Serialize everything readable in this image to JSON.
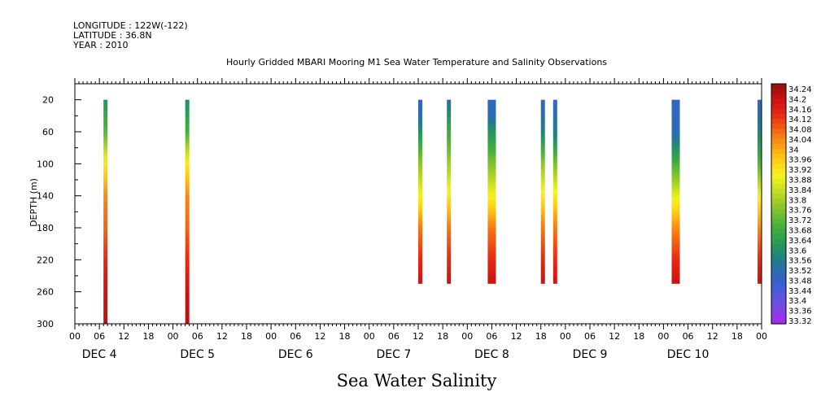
{
  "header": {
    "longitude": "LONGITUDE : 122W(-122)",
    "latitude": "LATITUDE : 36.8N",
    "year": "YEAR : 2010"
  },
  "chart_data": {
    "type": "heatmap",
    "title": "Hourly Gridded MBARI Mooring M1 Sea Water Temperature and Salinity Observations",
    "xlabel": "Sea Water Salinity",
    "ylabel": "DEPTH (m)",
    "y_axis": {
      "range": [
        300,
        0
      ],
      "ticks": [
        20,
        60,
        100,
        140,
        180,
        220,
        260,
        300
      ],
      "inverted": true
    },
    "x_axis": {
      "hour_ticks": [
        "00",
        "06",
        "12",
        "18",
        "00",
        "06",
        "12",
        "18",
        "00",
        "06",
        "12",
        "18",
        "00",
        "06",
        "12",
        "18",
        "00",
        "06",
        "12",
        "18",
        "00",
        "06",
        "12",
        "18",
        "00",
        "06",
        "12",
        "18",
        "00"
      ],
      "day_labels": [
        "DEC 4",
        "DEC 5",
        "DEC 6",
        "DEC 7",
        "DEC 8",
        "DEC 9",
        "DEC 10"
      ],
      "start": "2010-12-04T00:00",
      "end": "2010-12-11T00:00"
    },
    "colorbar": {
      "labels": [
        "34.24",
        "34.2",
        "34.16",
        "34.12",
        "34.08",
        "34.04",
        "34",
        "33.96",
        "33.92",
        "33.88",
        "33.84",
        "33.8",
        "33.76",
        "33.72",
        "33.68",
        "33.64",
        "33.6",
        "33.56",
        "33.52",
        "33.48",
        "33.44",
        "33.4",
        "33.36",
        "33.32"
      ],
      "min": 33.32,
      "max": 34.26
    },
    "profiles": [
      {
        "start": "2010-12-04T07:00",
        "end": "2010-12-04T08:00",
        "depth_range": [
          20,
          300
        ],
        "salinity": [
          [
            20,
            33.62
          ],
          [
            60,
            33.72
          ],
          [
            100,
            33.92
          ],
          [
            140,
            34.04
          ],
          [
            180,
            34.08
          ],
          [
            220,
            34.14
          ],
          [
            260,
            34.2
          ],
          [
            300,
            34.22
          ]
        ]
      },
      {
        "start": "2010-12-05T03:00",
        "end": "2010-12-05T04:00",
        "depth_range": [
          20,
          300
        ],
        "salinity": [
          [
            20,
            33.6
          ],
          [
            60,
            33.7
          ],
          [
            100,
            33.92
          ],
          [
            140,
            34.04
          ],
          [
            180,
            34.08
          ],
          [
            220,
            34.14
          ],
          [
            260,
            34.2
          ],
          [
            300,
            34.22
          ]
        ]
      },
      {
        "start": "2010-12-07T12:00",
        "end": "2010-12-07T13:00",
        "depth_range": [
          20,
          250
        ],
        "salinity": [
          [
            20,
            33.5
          ],
          [
            40,
            33.52
          ],
          [
            60,
            33.62
          ],
          [
            100,
            33.78
          ],
          [
            140,
            33.9
          ],
          [
            180,
            34.06
          ],
          [
            220,
            34.14
          ],
          [
            250,
            34.2
          ]
        ]
      },
      {
        "start": "2010-12-07T19:00",
        "end": "2010-12-07T20:00",
        "depth_range": [
          20,
          250
        ],
        "salinity": [
          [
            20,
            33.54
          ],
          [
            60,
            33.68
          ],
          [
            100,
            33.8
          ],
          [
            140,
            33.92
          ],
          [
            180,
            34.06
          ],
          [
            220,
            34.14
          ],
          [
            250,
            34.2
          ]
        ]
      },
      {
        "start": "2010-12-08T05:00",
        "end": "2010-12-08T07:00",
        "depth_range": [
          20,
          250
        ],
        "salinity": [
          [
            20,
            33.5
          ],
          [
            40,
            33.52
          ],
          [
            60,
            33.62
          ],
          [
            100,
            33.76
          ],
          [
            140,
            33.9
          ],
          [
            180,
            34.06
          ],
          [
            220,
            34.14
          ],
          [
            250,
            34.2
          ]
        ]
      },
      {
        "start": "2010-12-08T18:00",
        "end": "2010-12-08T19:00",
        "depth_range": [
          20,
          250
        ],
        "salinity": [
          [
            20,
            33.5
          ],
          [
            60,
            33.58
          ],
          [
            100,
            33.78
          ],
          [
            140,
            33.92
          ],
          [
            180,
            34.06
          ],
          [
            220,
            34.14
          ],
          [
            250,
            34.2
          ]
        ]
      },
      {
        "start": "2010-12-08T21:00",
        "end": "2010-12-08T22:00",
        "depth_range": [
          20,
          250
        ],
        "salinity": [
          [
            20,
            33.5
          ],
          [
            60,
            33.56
          ],
          [
            100,
            33.76
          ],
          [
            140,
            33.92
          ],
          [
            180,
            34.06
          ],
          [
            220,
            34.14
          ],
          [
            250,
            34.2
          ]
        ]
      },
      {
        "start": "2010-12-10T02:00",
        "end": "2010-12-10T04:00",
        "depth_range": [
          20,
          250
        ],
        "salinity": [
          [
            20,
            33.5
          ],
          [
            60,
            33.52
          ],
          [
            100,
            33.7
          ],
          [
            140,
            33.88
          ],
          [
            180,
            34.04
          ],
          [
            220,
            34.14
          ],
          [
            250,
            34.2
          ]
        ]
      },
      {
        "start": "2010-12-10T23:00",
        "end": "2010-12-11T00:00",
        "depth_range": [
          20,
          250
        ],
        "salinity": [
          [
            20,
            33.5
          ],
          [
            60,
            33.58
          ],
          [
            100,
            33.72
          ],
          [
            140,
            33.9
          ],
          [
            180,
            34.04
          ],
          [
            220,
            34.14
          ],
          [
            250,
            34.2
          ]
        ]
      }
    ]
  }
}
